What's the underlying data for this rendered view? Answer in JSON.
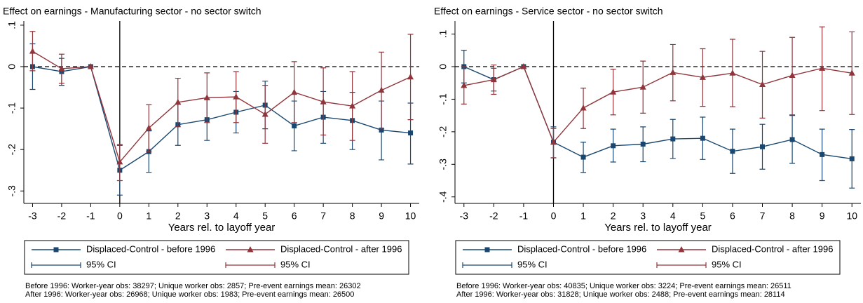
{
  "chart_data": [
    {
      "type": "line",
      "title": "Effect on earnings - Manufacturing sector - no sector switch",
      "xlabel": "Years rel. to layoff year",
      "x": [
        -3,
        -2,
        -1,
        0,
        1,
        2,
        3,
        4,
        5,
        6,
        7,
        8,
        9,
        10
      ],
      "xlim": [
        -3.3,
        10.3
      ],
      "xticks": [
        -3,
        -2,
        -1,
        0,
        1,
        2,
        3,
        4,
        5,
        6,
        7,
        8,
        9,
        10
      ],
      "ylim": [
        -0.33,
        0.11
      ],
      "yticks": [
        {
          "value": -0.3,
          "label": "-.3"
        },
        {
          "value": -0.2,
          "label": "-.2"
        },
        {
          "value": -0.1,
          "label": "-.1"
        },
        0,
        {
          "value": 0.1,
          "label": ".1"
        }
      ],
      "hline": 0,
      "vline": 0,
      "series": [
        {
          "name": "Displaced-Control - before 1996",
          "color": "#1a476f",
          "marker": "square",
          "ci_label": "95% CI",
          "values": [
            0,
            -0.012,
            0,
            -0.25,
            -0.205,
            -0.14,
            -0.128,
            -0.11,
            -0.093,
            -0.143,
            -0.122,
            -0.13,
            -0.153,
            -0.16
          ],
          "ci_low": [
            -0.055,
            -0.045,
            0,
            -0.31,
            -0.255,
            -0.19,
            -0.178,
            -0.16,
            -0.15,
            -0.203,
            -0.185,
            -0.2,
            -0.225,
            -0.235
          ],
          "ci_high": [
            0.055,
            0.02,
            0,
            -0.19,
            -0.155,
            -0.09,
            -0.078,
            -0.06,
            -0.035,
            -0.083,
            -0.06,
            -0.062,
            -0.083,
            -0.088
          ]
        },
        {
          "name": "Displaced-Control - after 1996",
          "color": "#90353b",
          "marker": "triangle",
          "ci_label": "95% CI",
          "values": [
            0.037,
            -0.005,
            0,
            -0.23,
            -0.148,
            -0.086,
            -0.075,
            -0.073,
            -0.115,
            -0.062,
            -0.085,
            -0.095,
            -0.057,
            -0.025
          ],
          "ci_low": [
            -0.01,
            -0.04,
            0,
            -0.275,
            -0.205,
            -0.145,
            -0.135,
            -0.135,
            -0.185,
            -0.135,
            -0.165,
            -0.178,
            -0.15,
            -0.128
          ],
          "ci_high": [
            0.085,
            0.03,
            0,
            -0.188,
            -0.092,
            -0.028,
            -0.015,
            -0.012,
            -0.045,
            0.012,
            -0.003,
            -0.012,
            0.035,
            0.078
          ]
        }
      ],
      "notes": [
        "Before 1996: Worker-year obs: 38297; Unique worker obs: 2857; Pre-event earnings mean: 26302",
        "After 1996: Worker-year obs: 26968; Unique worker obs: 1983; Pre-event earnings mean: 26500"
      ]
    },
    {
      "type": "line",
      "title": "Effect on earnings - Service sector - no sector switch",
      "xlabel": "Years rel. to layoff year",
      "x": [
        -3,
        -2,
        -1,
        0,
        1,
        2,
        3,
        4,
        5,
        6,
        7,
        8,
        9,
        10
      ],
      "xlim": [
        -3.3,
        10.3
      ],
      "xticks": [
        -3,
        -2,
        -1,
        0,
        1,
        2,
        3,
        4,
        5,
        6,
        7,
        8,
        9,
        10
      ],
      "ylim": [
        -0.42,
        0.14
      ],
      "yticks": [
        {
          "value": -0.4,
          "label": "-.4"
        },
        {
          "value": -0.3,
          "label": "-.3"
        },
        {
          "value": -0.2,
          "label": "-.2"
        },
        {
          "value": -0.1,
          "label": "-.1"
        },
        0,
        {
          "value": 0.1,
          "label": ".1"
        }
      ],
      "hline": 0,
      "vline": 0,
      "series": [
        {
          "name": "Displaced-Control - before 1996",
          "color": "#1a476f",
          "marker": "square",
          "ci_label": "95% CI",
          "values": [
            0,
            -0.04,
            0,
            -0.232,
            -0.278,
            -0.243,
            -0.238,
            -0.222,
            -0.22,
            -0.26,
            -0.246,
            -0.224,
            -0.27,
            -0.283
          ],
          "ci_low": [
            -0.05,
            -0.075,
            0,
            -0.28,
            -0.325,
            -0.293,
            -0.292,
            -0.282,
            -0.285,
            -0.328,
            -0.315,
            -0.297,
            -0.35,
            -0.373
          ],
          "ci_high": [
            0.05,
            -0.005,
            0,
            -0.185,
            -0.232,
            -0.192,
            -0.185,
            -0.162,
            -0.155,
            -0.192,
            -0.177,
            -0.15,
            -0.192,
            -0.193
          ]
        },
        {
          "name": "Displaced-Control - after 1996",
          "color": "#90353b",
          "marker": "triangle",
          "ci_label": "95% CI",
          "values": [
            -0.058,
            -0.04,
            0,
            -0.232,
            -0.127,
            -0.078,
            -0.063,
            -0.018,
            -0.033,
            -0.02,
            -0.055,
            -0.027,
            -0.005,
            -0.02
          ],
          "ci_low": [
            -0.115,
            -0.085,
            0,
            -0.28,
            -0.19,
            -0.148,
            -0.143,
            -0.105,
            -0.122,
            -0.123,
            -0.158,
            -0.148,
            -0.135,
            -0.147
          ],
          "ci_high": [
            0,
            0.005,
            0,
            -0.19,
            -0.066,
            -0.008,
            0.017,
            0.068,
            0.055,
            0.084,
            0.047,
            0.09,
            0.122,
            0.107
          ]
        }
      ],
      "notes": [
        "Before 1996: Worker-year obs: 40835; Unique worker obs: 3224; Pre-event earnings mean: 26511",
        "After 1996: Worker-year obs: 31828; Unique worker obs: 2488; Pre-event earnings mean: 28114"
      ]
    }
  ]
}
